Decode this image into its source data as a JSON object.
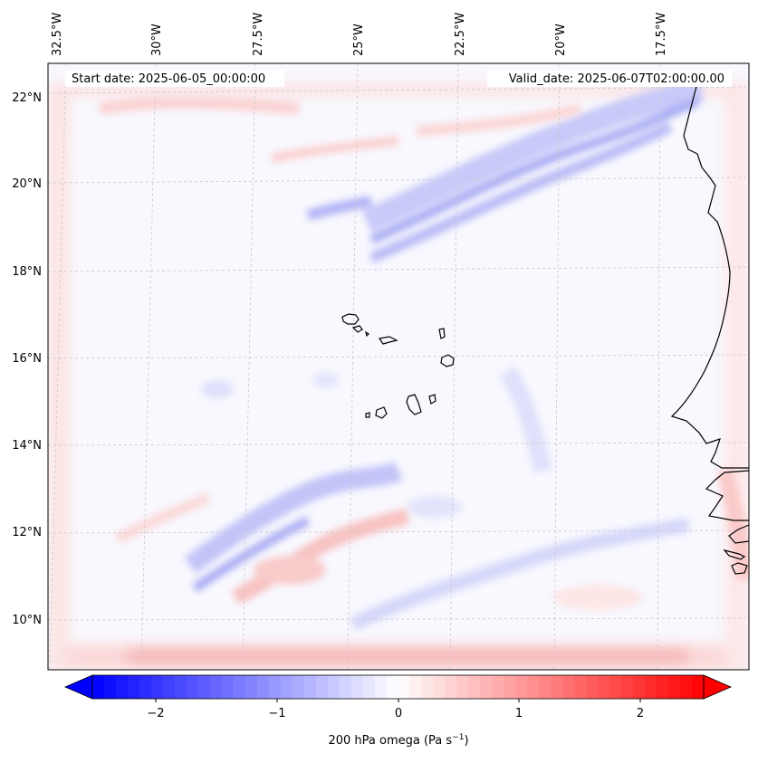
{
  "map": {
    "header": {
      "start_label": "Start date: 2025-06-05_00:00:00",
      "valid_label": "Valid_date: 2025-06-07T02:00:00.00"
    },
    "lon_labels": [
      "32.5°W",
      "30°W",
      "27.5°W",
      "25°W",
      "22.5°W",
      "20°W",
      "17.5°W"
    ],
    "lat_labels": [
      "22°N",
      "20°N",
      "18°N",
      "16°N",
      "14°N",
      "12°N",
      "10°N"
    ],
    "colorbar": {
      "ticks": [
        "−2",
        "−1",
        "0",
        "1",
        "2"
      ],
      "label": "200 hPa omega (Pa s",
      "label_sup": "−1",
      "label_close": ")",
      "range": [
        -2.6,
        2.6
      ],
      "levels": 52
    },
    "colors": {
      "negative": "#0000ff",
      "positive": "#ff0000",
      "neutral": "#ffffff",
      "coast": "#000000",
      "grid": "#c8c8c8"
    }
  }
}
